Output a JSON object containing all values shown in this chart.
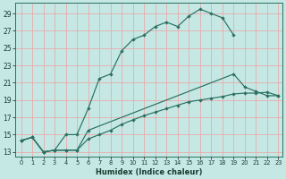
{
  "xlabel": "Humidex (Indice chaleur)",
  "bg_color": "#c5e8e5",
  "grid_color": "#e8aaaa",
  "line_color": "#2a7060",
  "xlim_min": -0.5,
  "xlim_max": 23.4,
  "ylim_min": 12.5,
  "ylim_max": 30.2,
  "yticks": [
    13,
    15,
    17,
    19,
    21,
    23,
    25,
    27,
    29
  ],
  "xticks": [
    0,
    1,
    2,
    3,
    4,
    5,
    6,
    7,
    8,
    9,
    10,
    11,
    12,
    13,
    14,
    15,
    16,
    17,
    18,
    19,
    20,
    21,
    22,
    23
  ],
  "top_x": [
    0,
    1,
    2,
    3,
    4,
    5,
    6,
    7,
    8,
    9,
    10,
    11,
    12,
    13,
    14,
    15,
    16,
    17,
    18,
    19
  ],
  "top_y": [
    14.3,
    14.7,
    13.0,
    13.2,
    15.0,
    15.0,
    18.0,
    21.5,
    22.0,
    24.7,
    26.0,
    26.5,
    27.5,
    28.0,
    27.5,
    28.7,
    29.5,
    29.0,
    28.5,
    26.5
  ],
  "mid_x": [
    0,
    1,
    2,
    3,
    4,
    5,
    6,
    19,
    20,
    21,
    22,
    23
  ],
  "mid_y": [
    14.3,
    14.7,
    13.0,
    13.2,
    13.2,
    13.2,
    15.5,
    22.0,
    20.5,
    20.0,
    19.5,
    19.5
  ],
  "bot_x": [
    0,
    1,
    2,
    3,
    4,
    5,
    6,
    7,
    8,
    9,
    10,
    11,
    12,
    13,
    14,
    15,
    16,
    17,
    18,
    19,
    20,
    21,
    22,
    23
  ],
  "bot_y": [
    14.3,
    14.7,
    13.0,
    13.2,
    13.2,
    13.2,
    14.5,
    15.0,
    15.5,
    16.2,
    16.7,
    17.2,
    17.6,
    18.0,
    18.4,
    18.8,
    19.0,
    19.2,
    19.4,
    19.7,
    19.8,
    19.8,
    19.9,
    19.5
  ]
}
